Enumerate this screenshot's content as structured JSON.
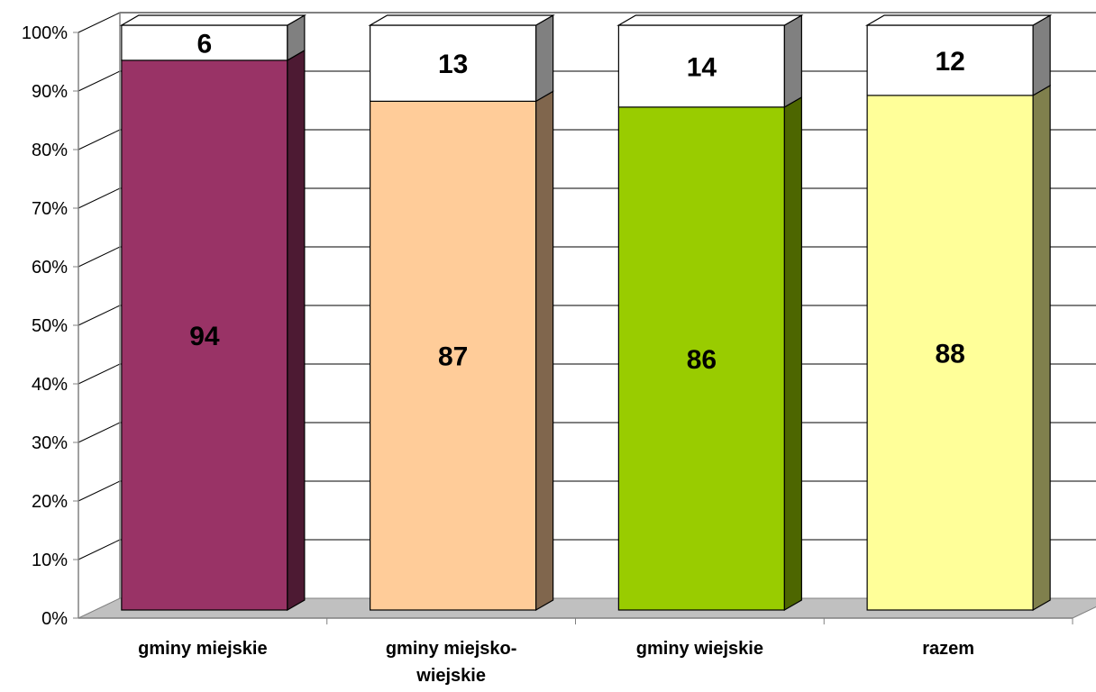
{
  "chart_data": {
    "type": "bar",
    "stacked": true,
    "percent_stacked": true,
    "three_d": true,
    "categories": [
      [
        "gminy miejskie"
      ],
      [
        "gminy miejsko-",
        "wiejskie"
      ],
      [
        "gminy wiejskie"
      ],
      [
        "razem"
      ]
    ],
    "series": [
      {
        "values": [
          94,
          87,
          86,
          88
        ],
        "colors": [
          "#993366",
          "#FFCC99",
          "#99CC00",
          "#FFFF99"
        ],
        "side_colors": [
          "#4d1a33",
          "#80664d",
          "#4d6600",
          "#80804d"
        ]
      },
      {
        "values": [
          6,
          13,
          14,
          12
        ],
        "colors": [
          "#FFFFFF",
          "#FFFFFF",
          "#FFFFFF",
          "#FFFFFF"
        ],
        "side_colors": [
          "#808080",
          "#808080",
          "#808080",
          "#808080"
        ]
      }
    ],
    "yticks": [
      "0%",
      "10%",
      "20%",
      "30%",
      "40%",
      "50%",
      "60%",
      "70%",
      "80%",
      "90%",
      "100%"
    ],
    "ylim": [
      0,
      100
    ],
    "grid": true,
    "floor_color": "#C0C0C0"
  }
}
